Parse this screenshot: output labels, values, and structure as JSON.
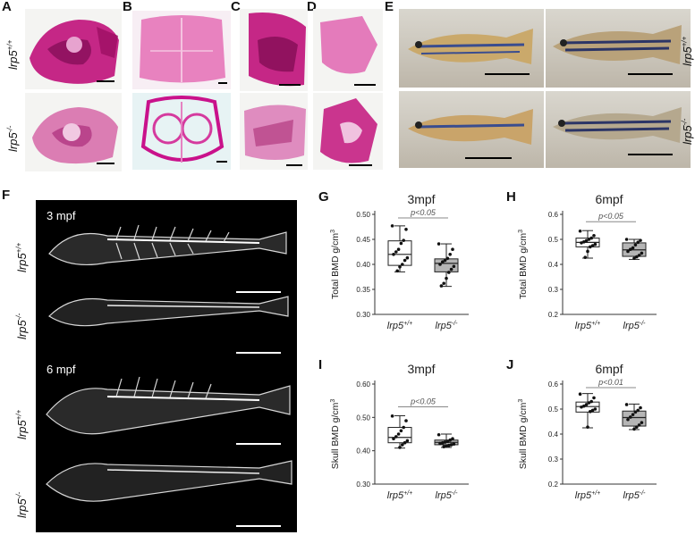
{
  "panel_letters": [
    "A",
    "B",
    "C",
    "D",
    "E",
    "F",
    "G",
    "H",
    "I",
    "J"
  ],
  "genotypes": {
    "wt": "lrp5+/+",
    "wt_base": "lrp5",
    "wt_sup": "+/+",
    "ko": "lrp5-/-",
    "ko_base": "lrp5",
    "ko_sup": "-/-"
  },
  "ct_labels": {
    "top": "3 mpf",
    "bottom": "6 mpf"
  },
  "colors": {
    "stain": "#c0117a",
    "stain_light": "#e7a3cf",
    "ct_bg": "#000000"
  },
  "chart_data": [
    {
      "id": "G",
      "type": "box",
      "title": "3mpf",
      "ylabel": "Total BMD g/cm3",
      "ylabel_base": "Total BMD g/cm",
      "ylabel_sup": "3",
      "ylim": [
        0.3,
        0.5
      ],
      "yticks": [
        "0.30",
        "0.35",
        "0.40",
        "0.45",
        "0.50"
      ],
      "categories": [
        "lrp5+/+",
        "lrp5-/-"
      ],
      "annotation": "p<0.05",
      "boxes": [
        {
          "min": 0.385,
          "q1": 0.398,
          "median": 0.42,
          "q3": 0.447,
          "max": 0.477,
          "points": [
            0.477,
            0.47,
            0.448,
            0.442,
            0.43,
            0.425,
            0.42,
            0.413,
            0.408,
            0.4,
            0.395,
            0.387
          ]
        },
        {
          "min": 0.356,
          "q1": 0.385,
          "median": 0.402,
          "q3": 0.411,
          "max": 0.441,
          "points": [
            0.441,
            0.43,
            0.42,
            0.412,
            0.408,
            0.405,
            0.4,
            0.396,
            0.39,
            0.384,
            0.372,
            0.362,
            0.357
          ]
        }
      ]
    },
    {
      "id": "H",
      "type": "box",
      "title": "6mpf",
      "ylabel": "Total BMD g/cm3",
      "ylabel_base": "Total BMD g/cm",
      "ylabel_sup": "3",
      "ylim": [
        0.2,
        0.6
      ],
      "yticks": [
        "0.2",
        "0.3",
        "0.4",
        "0.5",
        "0.6"
      ],
      "categories": [
        "lrp5+/+",
        "lrp5-/-"
      ],
      "annotation": "p<0.05",
      "boxes": [
        {
          "min": 0.425,
          "q1": 0.47,
          "median": 0.488,
          "q3": 0.505,
          "max": 0.535,
          "points": [
            0.533,
            0.515,
            0.505,
            0.5,
            0.495,
            0.49,
            0.486,
            0.48,
            0.475,
            0.47,
            0.452,
            0.428
          ]
        },
        {
          "min": 0.42,
          "q1": 0.432,
          "median": 0.458,
          "q3": 0.486,
          "max": 0.5,
          "points": [
            0.5,
            0.496,
            0.488,
            0.478,
            0.466,
            0.46,
            0.452,
            0.445,
            0.436,
            0.43,
            0.424
          ]
        }
      ]
    },
    {
      "id": "I",
      "type": "box",
      "title": "3mpf",
      "ylabel": "Skull BMD g/cm3",
      "ylabel_base": "Skull BMD g/cm",
      "ylabel_sup": "3",
      "ylim": [
        0.3,
        0.6
      ],
      "yticks": [
        "0.30",
        "0.40",
        "0.50",
        "0.60"
      ],
      "categories": [
        "lrp5+/+",
        "lrp5-/-"
      ],
      "annotation": "p<0.05",
      "boxes": [
        {
          "min": 0.408,
          "q1": 0.424,
          "median": 0.44,
          "q3": 0.47,
          "max": 0.505,
          "points": [
            0.504,
            0.49,
            0.47,
            0.46,
            0.45,
            0.442,
            0.436,
            0.43,
            0.424,
            0.418,
            0.41
          ]
        },
        {
          "min": 0.41,
          "q1": 0.418,
          "median": 0.425,
          "q3": 0.432,
          "max": 0.45,
          "points": [
            0.448,
            0.436,
            0.432,
            0.428,
            0.426,
            0.424,
            0.422,
            0.42,
            0.418,
            0.416,
            0.414,
            0.412
          ]
        }
      ]
    },
    {
      "id": "J",
      "type": "box",
      "title": "6mpf",
      "ylabel": "Skull BMD g/cm3",
      "ylabel_base": "Skull BMD g/cm",
      "ylabel_sup": "3",
      "ylim": [
        0.2,
        0.6
      ],
      "yticks": [
        "0.2",
        "0.3",
        "0.4",
        "0.5",
        "0.6"
      ],
      "categories": [
        "lrp5+/+",
        "lrp5-/-"
      ],
      "annotation": "p<0.01",
      "boxes": [
        {
          "min": 0.425,
          "q1": 0.488,
          "median": 0.51,
          "q3": 0.528,
          "max": 0.562,
          "points": [
            0.56,
            0.545,
            0.53,
            0.525,
            0.518,
            0.512,
            0.508,
            0.5,
            0.495,
            0.49,
            0.428
          ]
        },
        {
          "min": 0.418,
          "q1": 0.432,
          "median": 0.466,
          "q3": 0.492,
          "max": 0.52,
          "points": [
            0.518,
            0.505,
            0.495,
            0.488,
            0.478,
            0.468,
            0.458,
            0.446,
            0.436,
            0.428,
            0.42
          ]
        }
      ]
    }
  ]
}
